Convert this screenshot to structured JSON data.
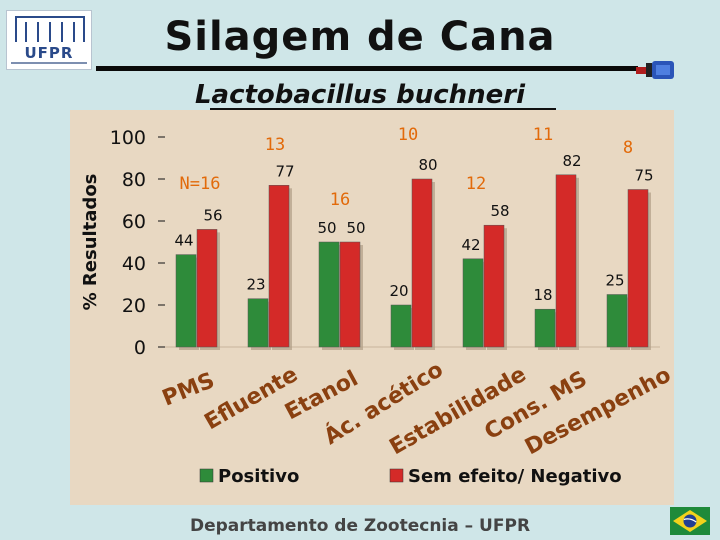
{
  "header": {
    "logo_text": "UFPR",
    "title": "Silagem de Cana",
    "subtitle": "Lactobacillus buchneri"
  },
  "footer": {
    "text": "Departamento de Zootecnia – UFPR"
  },
  "icons": {
    "logo": "ufpr-logo-icon",
    "connector": "cable-connector-icon",
    "flag": "brazil-flag-icon"
  },
  "colors": {
    "positive": "#2e8b3a",
    "negative": "#d42a28",
    "background": "#cfe6e8",
    "plot": "#e8d8c2"
  },
  "chart_data": {
    "type": "bar",
    "ylabel": "% Resultados",
    "ylim": [
      0,
      100
    ],
    "yticks": [
      "100",
      "80",
      "60",
      "40",
      "20",
      "0"
    ],
    "categories": [
      "PMS",
      "Efluente",
      "Etanol",
      "Ác. acético",
      "Estabilidade",
      "Cons. MS",
      "Desempenho"
    ],
    "series": [
      {
        "name": "Positivo",
        "color": "#2e8b3a",
        "values": [
          44,
          23,
          50,
          20,
          42,
          18,
          25
        ]
      },
      {
        "name": "Sem efeito/ Negativo",
        "color": "#d42a28",
        "values": [
          56,
          77,
          50,
          80,
          58,
          82,
          75
        ]
      }
    ],
    "n_labels": [
      "N=16",
      "13",
      "16",
      "10",
      "12",
      "11",
      "8"
    ],
    "legend": "bottom",
    "grid": false
  }
}
